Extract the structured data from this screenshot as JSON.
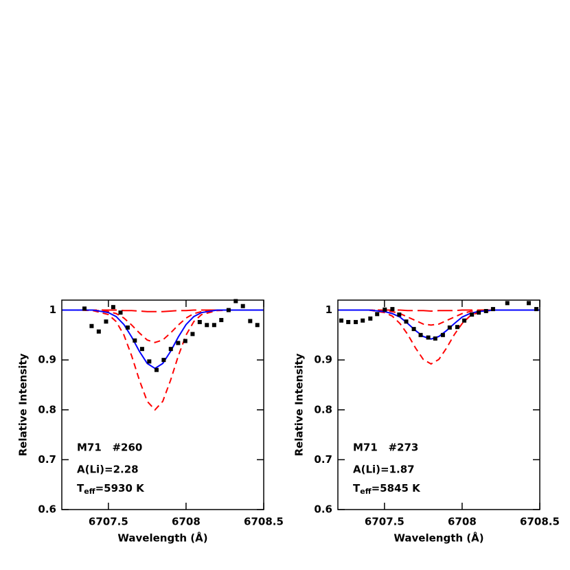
{
  "chart_data": [
    {
      "type": "line",
      "xlabel": "Wavelength (Å)",
      "ylabel": "Relative Intensity",
      "xlim": [
        6707.2,
        6708.5
      ],
      "ylim": [
        0.6,
        1.02
      ],
      "xticks": [
        6707.5,
        6708,
        6708.5
      ],
      "yticks": [
        0.6,
        0.7,
        0.8,
        0.9,
        1
      ],
      "annotation": {
        "star": "M71   #260",
        "abundance": "A(Li)=2.28",
        "teff": {
          "main": "T",
          "sub": "eff",
          "rest": "=5930 K"
        }
      },
      "x": [
        6707.2,
        6707.3,
        6707.4,
        6707.5,
        6707.55,
        6707.6,
        6707.65,
        6707.7,
        6707.75,
        6707.8,
        6707.85,
        6707.9,
        6707.95,
        6708.0,
        6708.05,
        6708.1,
        6708.2,
        6708.3,
        6708.5
      ],
      "series": [
        {
          "color": "#ff0000",
          "style": "longdash",
          "values": [
            1,
            1,
            1,
            1,
            1,
            0.999,
            0.999,
            0.998,
            0.997,
            0.997,
            0.997,
            0.998,
            0.999,
            0.999,
            1,
            1,
            1,
            1,
            1
          ]
        },
        {
          "color": "#ff0000",
          "style": "dashed",
          "values": [
            1,
            1,
            1,
            0.997,
            0.993,
            0.984,
            0.97,
            0.954,
            0.94,
            0.935,
            0.94,
            0.954,
            0.97,
            0.984,
            0.993,
            0.997,
            1,
            1,
            1
          ]
        },
        {
          "color": "#ff0000",
          "style": "dashed",
          "values": [
            1,
            1,
            0.999,
            0.991,
            0.977,
            0.95,
            0.908,
            0.859,
            0.817,
            0.8,
            0.817,
            0.859,
            0.908,
            0.95,
            0.977,
            0.991,
            0.999,
            1,
            1
          ]
        },
        {
          "color": "#0000ff",
          "style": "solid",
          "values": [
            1,
            1,
            1,
            0.995,
            0.987,
            0.971,
            0.946,
            0.917,
            0.893,
            0.883,
            0.893,
            0.917,
            0.946,
            0.971,
            0.987,
            0.995,
            1,
            1,
            1
          ]
        },
        {
          "color": "#000000",
          "style": "points",
          "x": [
            6707.346,
            6707.392,
            6707.438,
            6707.485,
            6707.531,
            6707.578,
            6707.624,
            6707.67,
            6707.717,
            6707.763,
            6707.81,
            6707.856,
            6707.902,
            6707.949,
            6707.995,
            6708.042,
            6708.088,
            6708.134,
            6708.181,
            6708.227,
            6708.274,
            6708.32,
            6708.366,
            6708.413,
            6708.459
          ],
          "values": [
            1.003,
            0.968,
            0.957,
            0.977,
            1.006,
            0.995,
            0.965,
            0.939,
            0.922,
            0.897,
            0.88,
            0.9,
            0.922,
            0.934,
            0.938,
            0.952,
            0.976,
            0.97,
            0.97,
            0.98,
            1.0,
            1.018,
            1.008,
            0.978,
            0.97
          ]
        }
      ]
    },
    {
      "type": "line",
      "xlabel": "Wavelength (Å)",
      "ylabel": "Relative Intensity",
      "xlim": [
        6707.2,
        6708.5
      ],
      "ylim": [
        0.6,
        1.02
      ],
      "xticks": [
        6707.5,
        6708,
        6708.5
      ],
      "yticks": [
        0.6,
        0.7,
        0.8,
        0.9,
        1
      ],
      "annotation": {
        "star": "M71   #273",
        "abundance": "A(Li)=1.87",
        "teff": {
          "main": "T",
          "sub": "eff",
          "rest": "=5845 K"
        }
      },
      "x": [
        6707.2,
        6707.3,
        6707.4,
        6707.5,
        6707.55,
        6707.6,
        6707.65,
        6707.7,
        6707.75,
        6707.8,
        6707.85,
        6707.9,
        6707.95,
        6708.0,
        6708.05,
        6708.1,
        6708.2,
        6708.3,
        6708.5
      ],
      "series": [
        {
          "color": "#ff0000",
          "style": "longdash",
          "values": [
            1,
            1,
            1,
            1,
            1,
            1,
            0.999,
            0.999,
            0.999,
            0.998,
            0.999,
            0.999,
            0.999,
            1,
            1,
            1,
            1,
            1,
            1
          ]
        },
        {
          "color": "#ff0000",
          "style": "dashed",
          "values": [
            1,
            1,
            1,
            0.999,
            0.997,
            0.993,
            0.986,
            0.979,
            0.972,
            0.97,
            0.972,
            0.979,
            0.986,
            0.993,
            0.997,
            0.999,
            1,
            1,
            1
          ]
        },
        {
          "color": "#ff0000",
          "style": "dashed",
          "values": [
            1,
            1,
            1,
            0.995,
            0.988,
            0.973,
            0.951,
            0.924,
            0.901,
            0.892,
            0.901,
            0.924,
            0.951,
            0.973,
            0.988,
            0.995,
            1,
            1,
            1
          ]
        },
        {
          "color": "#0000ff",
          "style": "solid",
          "values": [
            1,
            1,
            1,
            0.997,
            0.993,
            0.986,
            0.973,
            0.959,
            0.947,
            0.942,
            0.947,
            0.959,
            0.973,
            0.986,
            0.993,
            0.997,
            1,
            1,
            1
          ]
        },
        {
          "color": "#000000",
          "style": "points",
          "x": [
            6707.222,
            6707.267,
            6707.315,
            6707.36,
            6707.409,
            6707.453,
            6707.502,
            6707.551,
            6707.595,
            6707.64,
            6707.689,
            6707.733,
            6707.782,
            6707.827,
            6707.876,
            6707.92,
            6707.969,
            6708.014,
            6708.063,
            6708.107,
            6708.154,
            6708.199,
            6708.291,
            6708.429,
            6708.478
          ],
          "values": [
            0.979,
            0.976,
            0.976,
            0.979,
            0.983,
            0.992,
            1.001,
            1.002,
            0.991,
            0.977,
            0.962,
            0.95,
            0.945,
            0.943,
            0.95,
            0.965,
            0.966,
            0.979,
            0.991,
            0.995,
            0.998,
            1.002,
            1.014,
            1.014,
            1.002
          ]
        }
      ]
    }
  ]
}
